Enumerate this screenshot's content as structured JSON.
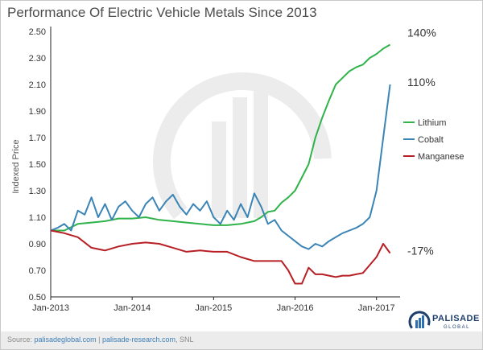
{
  "chart_data": {
    "type": "line",
    "title": "Performance Of Electric Vehicle Metals Since 2013",
    "ylabel": "Indexed Price",
    "xlabel": "",
    "ylim": [
      0.5,
      2.5
    ],
    "yticks": [
      "0.50",
      "0.70",
      "0.90",
      "1.10",
      "1.30",
      "1.50",
      "1.70",
      "1.90",
      "2.10",
      "2.30",
      "2.50"
    ],
    "xlim": [
      "2013-01",
      "2017-04"
    ],
    "xticks": [
      {
        "date": "2013-01",
        "label": "Jan-2013"
      },
      {
        "date": "2014-01",
        "label": "Jan-2014"
      },
      {
        "date": "2015-01",
        "label": "Jan-2015"
      },
      {
        "date": "2016-01",
        "label": "Jan-2016"
      },
      {
        "date": "2017-01",
        "label": "Jan-2017"
      }
    ],
    "grid": false,
    "legend_position": "right",
    "series": [
      {
        "name": "Lithium",
        "color": "#2fb34a",
        "end_label": "140%",
        "x": [
          "2013-01",
          "2013-03",
          "2013-05",
          "2013-07",
          "2013-09",
          "2013-11",
          "2014-01",
          "2014-03",
          "2014-05",
          "2014-07",
          "2014-09",
          "2014-11",
          "2015-01",
          "2015-03",
          "2015-05",
          "2015-07",
          "2015-08",
          "2015-09",
          "2015-10",
          "2015-11",
          "2015-12",
          "2016-01",
          "2016-02",
          "2016-03",
          "2016-04",
          "2016-05",
          "2016-06",
          "2016-07",
          "2016-08",
          "2016-09",
          "2016-10",
          "2016-11",
          "2016-12",
          "2017-01",
          "2017-02",
          "2017-03"
        ],
        "y": [
          1.0,
          1.0,
          1.05,
          1.06,
          1.07,
          1.09,
          1.09,
          1.1,
          1.08,
          1.07,
          1.06,
          1.05,
          1.04,
          1.04,
          1.05,
          1.07,
          1.1,
          1.14,
          1.15,
          1.21,
          1.25,
          1.3,
          1.4,
          1.5,
          1.7,
          1.85,
          1.98,
          2.1,
          2.15,
          2.2,
          2.23,
          2.25,
          2.3,
          2.33,
          2.37,
          2.4
        ]
      },
      {
        "name": "Cobalt",
        "color": "#3b84b6",
        "end_label": "110%",
        "x": [
          "2013-01",
          "2013-02",
          "2013-03",
          "2013-04",
          "2013-05",
          "2013-06",
          "2013-07",
          "2013-08",
          "2013-09",
          "2013-10",
          "2013-11",
          "2013-12",
          "2014-01",
          "2014-02",
          "2014-03",
          "2014-04",
          "2014-05",
          "2014-06",
          "2014-07",
          "2014-08",
          "2014-09",
          "2014-10",
          "2014-11",
          "2014-12",
          "2015-01",
          "2015-02",
          "2015-03",
          "2015-04",
          "2015-05",
          "2015-06",
          "2015-07",
          "2015-08",
          "2015-09",
          "2015-10",
          "2015-11",
          "2015-12",
          "2016-01",
          "2016-02",
          "2016-03",
          "2016-04",
          "2016-05",
          "2016-06",
          "2016-07",
          "2016-08",
          "2016-09",
          "2016-10",
          "2016-11",
          "2016-12",
          "2017-01",
          "2017-02",
          "2017-03"
        ],
        "y": [
          1.0,
          1.02,
          1.05,
          1.0,
          1.15,
          1.12,
          1.25,
          1.1,
          1.2,
          1.08,
          1.18,
          1.22,
          1.15,
          1.1,
          1.2,
          1.25,
          1.15,
          1.22,
          1.27,
          1.18,
          1.12,
          1.2,
          1.15,
          1.22,
          1.1,
          1.05,
          1.15,
          1.08,
          1.2,
          1.1,
          1.28,
          1.18,
          1.05,
          1.08,
          1.0,
          0.96,
          0.92,
          0.88,
          0.86,
          0.9,
          0.88,
          0.92,
          0.95,
          0.98,
          1.0,
          1.02,
          1.05,
          1.1,
          1.3,
          1.7,
          2.1
        ]
      },
      {
        "name": "Manganese",
        "color": "#b71f24",
        "end_label": "-17%",
        "x": [
          "2013-01",
          "2013-03",
          "2013-05",
          "2013-07",
          "2013-09",
          "2013-11",
          "2014-01",
          "2014-03",
          "2014-05",
          "2014-07",
          "2014-09",
          "2014-11",
          "2015-01",
          "2015-03",
          "2015-05",
          "2015-07",
          "2015-09",
          "2015-11",
          "2015-12",
          "2016-01",
          "2016-02",
          "2016-03",
          "2016-04",
          "2016-05",
          "2016-06",
          "2016-07",
          "2016-08",
          "2016-09",
          "2016-10",
          "2016-11",
          "2016-12",
          "2017-01",
          "2017-02",
          "2017-03"
        ],
        "y": [
          1.0,
          0.98,
          0.95,
          0.87,
          0.85,
          0.88,
          0.9,
          0.91,
          0.9,
          0.87,
          0.84,
          0.85,
          0.84,
          0.84,
          0.8,
          0.77,
          0.77,
          0.77,
          0.7,
          0.6,
          0.6,
          0.72,
          0.67,
          0.67,
          0.66,
          0.65,
          0.66,
          0.66,
          0.67,
          0.68,
          0.74,
          0.8,
          0.9,
          0.83
        ]
      }
    ]
  },
  "footer": {
    "source_prefix": "Source: ",
    "source_link1": "palisadeglobal.com",
    "source_sep": " | ",
    "source_link2": "palisade-research.com",
    "source_suffix": ", SNL",
    "logo_name": "PALISADE",
    "logo_sub": "GLOBAL"
  }
}
